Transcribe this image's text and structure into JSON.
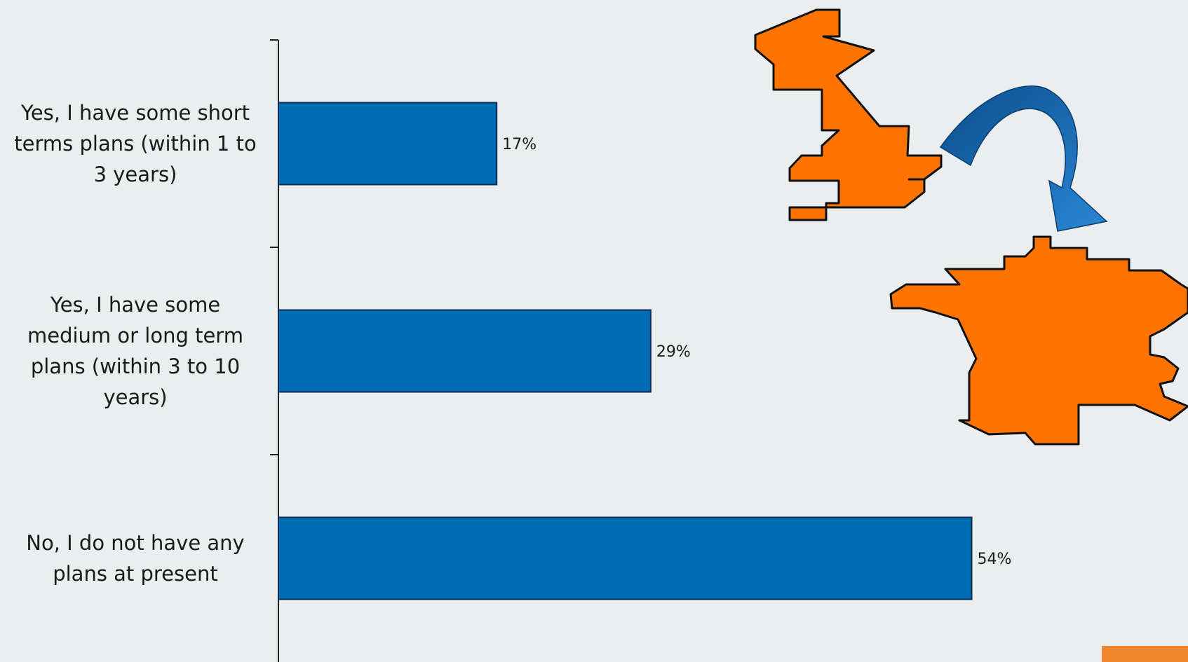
{
  "chart_data": {
    "type": "bar",
    "orientation": "horizontal",
    "categories": [
      "Yes, I have some short terms plans (within 1 to 3 years)",
      "Yes, I have some medium or long term plans (within 3 to 10 years)",
      "No, I do not have any plans at present"
    ],
    "category_lines": [
      [
        "Yes, I have some short",
        "terms plans (within 1 to",
        "3 years)"
      ],
      [
        "Yes, I have some",
        "medium or long term",
        "plans (within 3 to 10",
        "years)"
      ],
      [
        "No, I do not have any",
        "plans at present"
      ]
    ],
    "values": [
      17,
      29,
      54
    ],
    "value_labels": [
      "17%",
      "29%",
      "54%"
    ],
    "unit": "%",
    "xlim": [
      0,
      62
    ],
    "grid": false,
    "legend": "none",
    "title": "",
    "xlabel": "",
    "ylabel": ""
  },
  "colors": {
    "background": "#eaeeee",
    "bar": "#006cb5",
    "bar_border": "#0b2d52",
    "map_fill": "#ff7400",
    "map_stroke": "#111111",
    "arrow_dark": "#0a4e8c",
    "arrow_light": "#2b86d4",
    "corner_block": "#f0862f"
  },
  "decorations": {
    "maps": [
      "united-kingdom-map",
      "france-map"
    ],
    "arrow": "curved-arrow-uk-to-france"
  }
}
